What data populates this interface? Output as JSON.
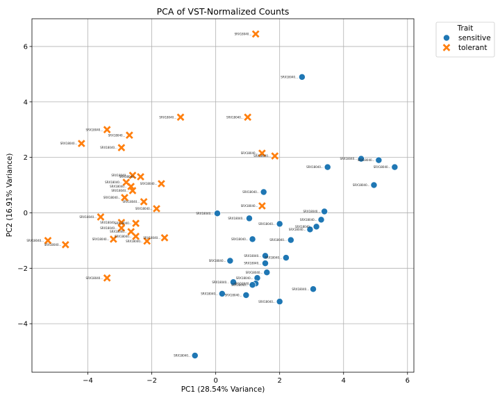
{
  "chart_data": {
    "type": "scatter",
    "title": "PCA of VST-Normalized Counts",
    "xlabel": "PC1 (28.54% Variance)",
    "ylabel": "PC2 (16.91% Variance)",
    "xlim": [
      -5.75,
      6.2
    ],
    "ylim": [
      -5.75,
      7.0
    ],
    "xticks": [
      -4,
      -2,
      0,
      2,
      4,
      6
    ],
    "yticks": [
      -4,
      -2,
      0,
      2,
      4,
      6
    ],
    "xtick_labels": [
      "−4",
      "−2",
      "0",
      "2",
      "4",
      "6"
    ],
    "ytick_labels": [
      "−4",
      "−2",
      "0",
      "2",
      "4",
      "6"
    ],
    "grid": true,
    "legend": {
      "title": "Trait",
      "placement": "outside-top-right",
      "entries": [
        "sensitive",
        "tolerant"
      ]
    },
    "point_label": "SRX18040...",
    "series": [
      {
        "name": "sensitive",
        "marker": "circle",
        "color": "#1f77b4",
        "points": [
          [
            2.7,
            4.9
          ],
          [
            5.6,
            1.65
          ],
          [
            5.1,
            1.9
          ],
          [
            4.55,
            1.95
          ],
          [
            3.5,
            1.65
          ],
          [
            4.95,
            1.0
          ],
          [
            1.5,
            0.75
          ],
          [
            3.4,
            0.05
          ],
          [
            3.3,
            -0.25
          ],
          [
            3.15,
            -0.5
          ],
          [
            2.95,
            -0.6
          ],
          [
            2.0,
            -0.4
          ],
          [
            1.05,
            -0.2
          ],
          [
            0.05,
            -0.02
          ],
          [
            1.15,
            -0.95
          ],
          [
            2.35,
            -0.98
          ],
          [
            0.45,
            -1.73
          ],
          [
            1.55,
            -1.55
          ],
          [
            2.2,
            -1.62
          ],
          [
            1.55,
            -1.82
          ],
          [
            1.6,
            -2.15
          ],
          [
            1.3,
            -2.35
          ],
          [
            1.25,
            -2.55
          ],
          [
            1.15,
            -2.6
          ],
          [
            0.55,
            -2.5
          ],
          [
            3.05,
            -2.75
          ],
          [
            0.2,
            -2.92
          ],
          [
            0.95,
            -2.97
          ],
          [
            2.0,
            -3.2
          ],
          [
            -0.65,
            -5.15
          ]
        ]
      },
      {
        "name": "tolerant",
        "marker": "x",
        "color": "#ff7f0e",
        "points": [
          [
            1.25,
            6.45
          ],
          [
            -1.1,
            3.45
          ],
          [
            1.0,
            3.45
          ],
          [
            -3.4,
            3.0
          ],
          [
            -2.7,
            2.8
          ],
          [
            -4.2,
            2.5
          ],
          [
            -2.95,
            2.35
          ],
          [
            1.45,
            2.15
          ],
          [
            1.85,
            2.05
          ],
          [
            -2.6,
            1.35
          ],
          [
            -2.35,
            1.3
          ],
          [
            -2.8,
            1.1
          ],
          [
            -1.7,
            1.05
          ],
          [
            -2.65,
            0.95
          ],
          [
            -2.6,
            0.8
          ],
          [
            -2.85,
            0.55
          ],
          [
            -2.25,
            0.4
          ],
          [
            -1.85,
            0.15
          ],
          [
            1.45,
            0.25
          ],
          [
            -3.6,
            -0.15
          ],
          [
            -2.95,
            -0.35
          ],
          [
            -2.5,
            -0.38
          ],
          [
            -2.95,
            -0.55
          ],
          [
            -2.65,
            -0.68
          ],
          [
            -2.5,
            -0.85
          ],
          [
            -1.6,
            -0.9
          ],
          [
            -3.2,
            -0.95
          ],
          [
            -2.15,
            -1.02
          ],
          [
            -5.25,
            -1.0
          ],
          [
            -4.7,
            -1.15
          ],
          [
            -3.4,
            -2.35
          ]
        ]
      }
    ]
  }
}
